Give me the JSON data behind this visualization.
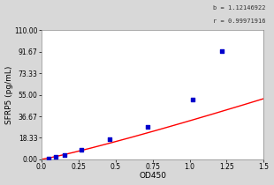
{
  "title": "",
  "xlabel": "OD450",
  "ylabel": "SFRP5 (pg/mL)",
  "annotation_line1": "b = 1.12146922",
  "annotation_line2": "r = 0.99971916",
  "x_data": [
    0.052,
    0.1,
    0.155,
    0.27,
    0.46,
    0.72,
    1.02,
    1.22
  ],
  "y_data": [
    0.3,
    1.8,
    3.8,
    8.5,
    17.0,
    28.0,
    51.0,
    92.0
  ],
  "xlim": [
    0.0,
    1.5
  ],
  "ylim": [
    0.0,
    110.0
  ],
  "yticks": [
    0.0,
    18.33,
    36.67,
    55.0,
    73.33,
    91.67,
    110.0
  ],
  "ytick_labels": [
    "0.00",
    "18.33",
    "36.67",
    "55.00",
    "73.33",
    "91.67",
    "110.00"
  ],
  "xticks": [
    0.0,
    0.25,
    0.5,
    0.75,
    1.0,
    1.25,
    1.5
  ],
  "xtick_labels": [
    "0.0",
    "0.25",
    "0.5",
    "0.75",
    "1.0",
    "1.25",
    "1.5"
  ],
  "curve_color": "#FF0000",
  "point_color": "#0000CC",
  "bg_color": "#D8D8D8",
  "plot_bg_color": "#FFFFFF",
  "tick_fontsize": 5.5,
  "label_fontsize": 6.5,
  "annotation_fontsize": 5.0,
  "b_param": 1.12146922,
  "curve_a": 55.0
}
